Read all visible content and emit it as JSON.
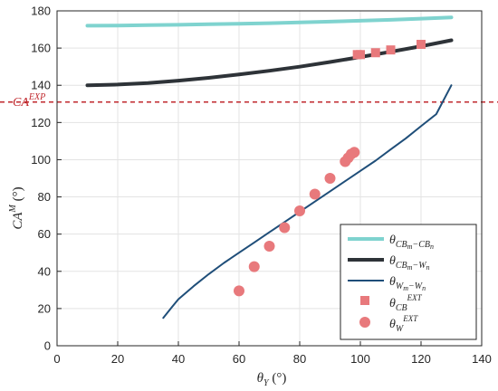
{
  "chart_data": {
    "type": "line",
    "xlabel": "θ_Y (°)",
    "ylabel": "CA^M (°)",
    "xlim": [
      0,
      140
    ],
    "ylim": [
      0,
      180
    ],
    "xticks": [
      0,
      20,
      40,
      60,
      80,
      100,
      120,
      140
    ],
    "yticks": [
      0,
      20,
      40,
      60,
      80,
      100,
      120,
      140,
      160,
      180
    ],
    "grid": true,
    "legend_position": "bottom-right",
    "reference_line": {
      "label": "CA^EXP",
      "y": 131,
      "color": "#c0282d",
      "style": "dashed"
    },
    "series": [
      {
        "name": "θ_{CBm−CBn}",
        "kind": "line",
        "color": "#7fd3cf",
        "x": [
          10,
          20,
          30,
          40,
          50,
          60,
          70,
          80,
          90,
          100,
          110,
          120,
          130
        ],
        "y": [
          172,
          172.1,
          172.3,
          172.5,
          172.8,
          173.1,
          173.4,
          173.8,
          174.2,
          174.7,
          175.2,
          175.8,
          176.5
        ]
      },
      {
        "name": "θ_{CBm−Wn}",
        "kind": "line",
        "color": "#2e3338",
        "x": [
          10,
          20,
          30,
          40,
          50,
          60,
          70,
          80,
          90,
          100,
          110,
          120,
          130
        ],
        "y": [
          140,
          140.4,
          141.2,
          142.5,
          144.0,
          145.8,
          147.8,
          150.0,
          152.5,
          155.2,
          158.0,
          161.0,
          164.2
        ]
      },
      {
        "name": "θ_{Wm−Wn}",
        "kind": "line",
        "color": "#1f4e79",
        "x": [
          35,
          38,
          40,
          45,
          50,
          55,
          60,
          65,
          70,
          75,
          80,
          85,
          90,
          95,
          100,
          105,
          110,
          115,
          120,
          125,
          130
        ],
        "y": [
          15,
          21,
          25,
          32,
          38.5,
          44.5,
          50,
          55.5,
          61,
          66.5,
          72,
          77.5,
          83,
          88.5,
          94,
          99.5,
          105.5,
          111.5,
          118,
          124.5,
          140
        ]
      },
      {
        "name": "θ_{CB}^{EXT}",
        "kind": "marker-square",
        "color": "#e8797c",
        "x": [
          99,
          100,
          105,
          110,
          120
        ],
        "y": [
          156.5,
          156.5,
          157.5,
          159,
          162
        ]
      },
      {
        "name": "θ_W^{EXT}",
        "kind": "marker-circle",
        "color": "#e8797c",
        "x": [
          60,
          65,
          70,
          75,
          80,
          85,
          90,
          95,
          96,
          97,
          98
        ],
        "y": [
          29.5,
          42.5,
          53.5,
          63.5,
          72.5,
          81.5,
          90,
          99,
          101,
          103,
          104
        ]
      }
    ]
  },
  "labels": {
    "ylabel_main": "CA",
    "ylabel_sup": "M",
    "ylabel_unit": " (°)",
    "xlabel_main": "θ",
    "xlabel_sub": "Y",
    "xlabel_unit": " (°)",
    "ref_main": "CA",
    "ref_sup": "EXP",
    "legend": [
      {
        "main": "θ",
        "sub": "CB",
        "subsub1": "m",
        "mid": "−CB",
        "subsub2": "n"
      },
      {
        "main": "θ",
        "sub": "CB",
        "subsub1": "m",
        "mid": "−W",
        "subsub2": "n"
      },
      {
        "main": "θ",
        "sub": "W",
        "subsub1": "m",
        "mid": "−W",
        "subsub2": "n"
      },
      {
        "main": "θ",
        "sub": "CB",
        "sup": "EXT"
      },
      {
        "main": "θ",
        "sub": "W",
        "sup": "EXT"
      }
    ]
  }
}
